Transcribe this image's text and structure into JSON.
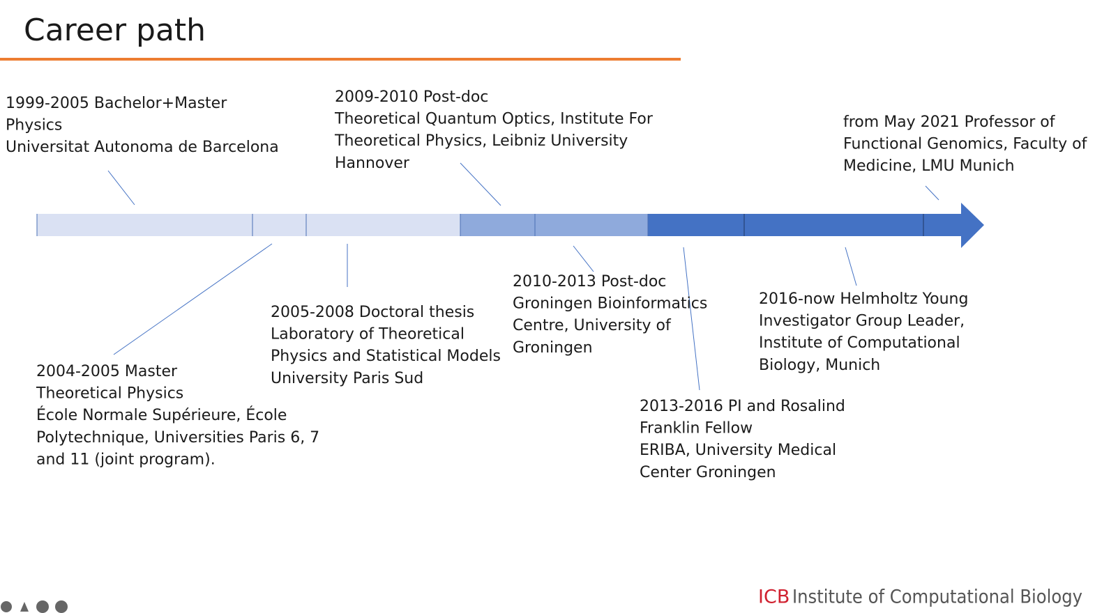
{
  "title": "Career path",
  "events": [
    {
      "lines": [
        "1999-2005 Bachelor+Master",
        "Physics",
        "Universitat Autonoma de Barcelona"
      ]
    },
    {
      "lines": [
        "2009-2010 Post-doc",
        "Theoretical Quantum Optics, Institute For",
        "Theoretical Physics, Leibniz University",
        "Hannover"
      ]
    },
    {
      "lines": [
        "from May 2021 Professor of",
        "Functional Genomics, Faculty of",
        "Medicine, LMU Munich"
      ]
    },
    {
      "lines": [
        "2004-2005 Master",
        "Theoretical Physics",
        "École Normale Supérieure, École",
        "Polytechnique, Universities Paris 6, 7",
        "and 11 (joint program)."
      ]
    },
    {
      "lines": [
        "2005-2008 Doctoral thesis",
        "Laboratory of Theoretical",
        "Physics and Statistical Models",
        "University Paris Sud"
      ]
    },
    {
      "lines": [
        "2010-2013 Post-doc",
        "Groningen Bioinformatics",
        "Centre,  University of",
        "Groningen"
      ]
    },
    {
      "lines": [
        "2013-2016 PI and Rosalind",
        "Franklin Fellow",
        "ERIBA,  University Medical",
        "Center Groningen"
      ]
    },
    {
      "lines": [
        "2016-now Helmholtz Young",
        "Investigator Group Leader,",
        "Institute of Computational",
        "Biology, Munich"
      ]
    }
  ],
  "footer": {
    "logo": "ICB",
    "name": "Institute of Computational Biology"
  }
}
